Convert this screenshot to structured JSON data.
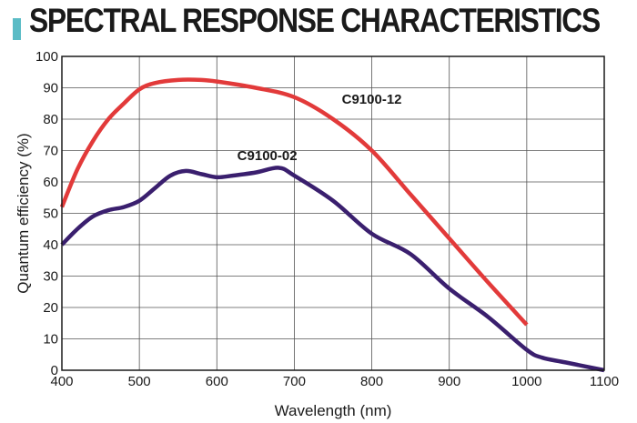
{
  "header": {
    "title": "SPECTRAL RESPONSE CHARACTERISTICS",
    "accent_color": "#5bbcc6"
  },
  "chart_data": {
    "type": "line",
    "title": "SPECTRAL RESPONSE CHARACTERISTICS",
    "xlabel": "Wavelength (nm)",
    "ylabel": "Quantum efficiency (%)",
    "xlim": [
      400,
      1100
    ],
    "ylim": [
      0,
      100
    ],
    "xticks": [
      400,
      500,
      600,
      700,
      800,
      900,
      1000,
      1100
    ],
    "yticks": [
      0,
      10,
      20,
      30,
      40,
      50,
      60,
      70,
      80,
      90,
      100
    ],
    "grid": true,
    "series": [
      {
        "name": "C9100-12",
        "color": "#e23a3a",
        "x": [
          400,
          420,
          440,
          460,
          480,
          500,
          520,
          550,
          580,
          600,
          650,
          700,
          750,
          800,
          850,
          900,
          950,
          1000
        ],
        "y": [
          52,
          64,
          73,
          80,
          85,
          89.5,
          91.5,
          92.5,
          92.5,
          92,
          90,
          87,
          80,
          70,
          56,
          42,
          28,
          14.5
        ]
      },
      {
        "name": "C9100-02",
        "color": "#3a1f6e",
        "x": [
          400,
          420,
          440,
          460,
          480,
          500,
          520,
          540,
          560,
          580,
          600,
          620,
          650,
          680,
          700,
          750,
          800,
          850,
          900,
          950,
          1000,
          1020,
          1050,
          1100
        ],
        "y": [
          40,
          45,
          49,
          51,
          52,
          54,
          58,
          62,
          63.5,
          62.5,
          61.5,
          62,
          63,
          64.5,
          62,
          54,
          43.5,
          37,
          26,
          17,
          6.5,
          4,
          2.5,
          0
        ]
      }
    ],
    "annotations": [
      {
        "text": "C9100-12",
        "x": 800,
        "y": 85
      },
      {
        "text": "C9100-02",
        "x": 665,
        "y": 67
      }
    ]
  }
}
